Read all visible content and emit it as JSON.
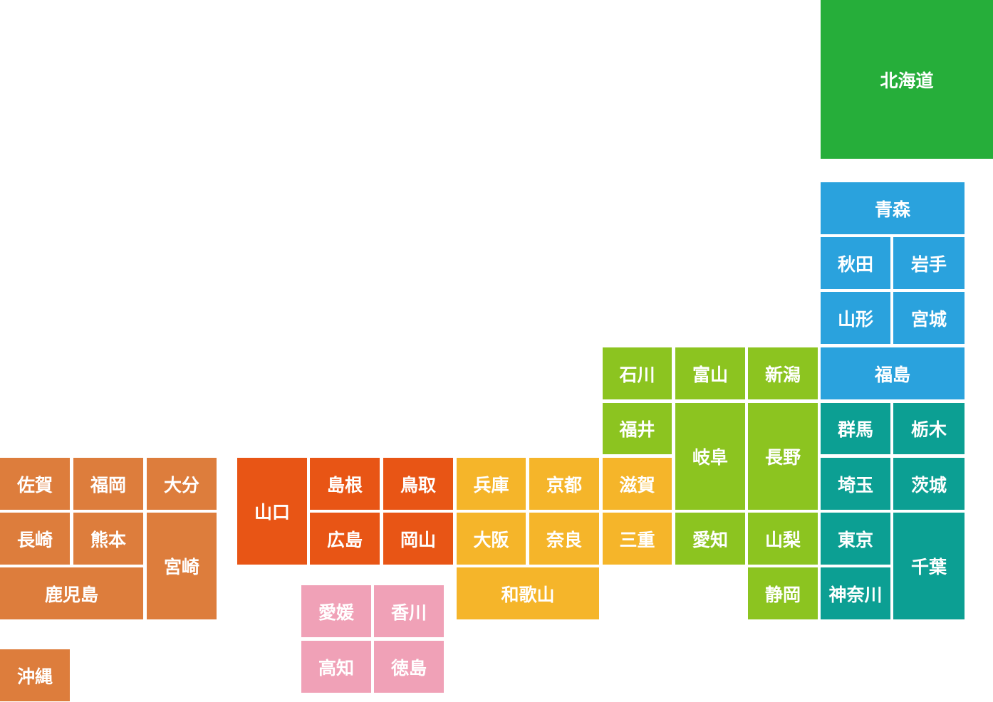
{
  "colors": {
    "hokkaido": "#26ae3a",
    "tohoku": "#2aa2dd",
    "kanto": "#0c9f93",
    "chubu": "#8cc420",
    "kinki": "#f5b52a",
    "chugoku": "#e85515",
    "shikoku": "#f0a1b7",
    "kyushu": "#dd7d3c",
    "text": "#ffffff"
  },
  "prefectures": {
    "hokkaido": "北海道",
    "aomori": "青森",
    "akita": "秋田",
    "iwate": "岩手",
    "yamagata": "山形",
    "miyagi": "宮城",
    "fukushima": "福島",
    "gunma": "群馬",
    "tochigi": "栃木",
    "saitama": "埼玉",
    "ibaraki": "茨城",
    "tokyo": "東京",
    "kanagawa": "神奈川",
    "chiba": "千葉",
    "ishikawa": "石川",
    "toyama": "富山",
    "niigata": "新潟",
    "fukui": "福井",
    "gifu": "岐阜",
    "nagano": "長野",
    "aichi": "愛知",
    "yamanashi": "山梨",
    "shizuoka": "静岡",
    "shiga": "滋賀",
    "mie": "三重",
    "hyogo": "兵庫",
    "kyoto": "京都",
    "osaka": "大阪",
    "nara": "奈良",
    "wakayama": "和歌山",
    "yamaguchi": "山口",
    "shimane": "島根",
    "tottori": "鳥取",
    "hiroshima": "広島",
    "okayama": "岡山",
    "ehime": "愛媛",
    "kagawa": "香川",
    "kochi": "高知",
    "tokushima": "徳島",
    "saga": "佐賀",
    "fukuoka": "福岡",
    "oita": "大分",
    "nagasaki": "長崎",
    "kumamoto": "熊本",
    "miyazaki": "宮崎",
    "kagoshima": "鹿児島",
    "okinawa": "沖縄"
  }
}
